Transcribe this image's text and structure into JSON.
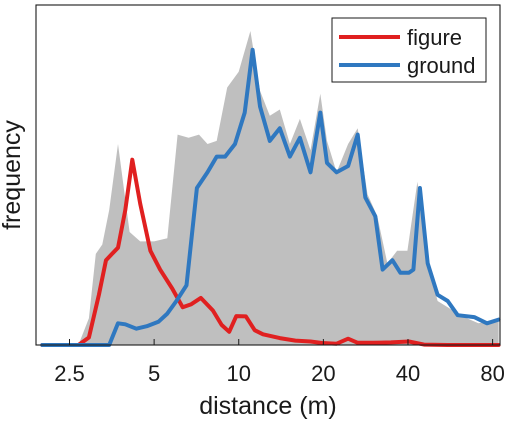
{
  "chart_data": {
    "type": "area",
    "xlabel": "distance (m)",
    "ylabel": "frequency",
    "x_scale": "log",
    "xlim": [
      1.9,
      85
    ],
    "ylim": [
      0,
      1
    ],
    "x_ticks": [
      2.5,
      5,
      10,
      20,
      40,
      80
    ],
    "x_tick_labels": [
      "2.5",
      "5",
      "10",
      "20",
      "40",
      "80"
    ],
    "y_ticks": [],
    "legend": {
      "position": "top-right"
    },
    "series": [
      {
        "name": "",
        "kind": "area",
        "color": "#bfbfbf",
        "points": [
          [
            2.0,
            0.0
          ],
          [
            2.69,
            0.0
          ],
          [
            2.93,
            0.085
          ],
          [
            3.1,
            0.29
          ],
          [
            3.27,
            0.32
          ],
          [
            3.46,
            0.43
          ],
          [
            3.72,
            0.64
          ],
          [
            4.09,
            0.36
          ],
          [
            4.46,
            0.33
          ],
          [
            5.0,
            0.33
          ],
          [
            5.57,
            0.34
          ],
          [
            6.06,
            0.67
          ],
          [
            6.63,
            0.66
          ],
          [
            7.22,
            0.67
          ],
          [
            7.74,
            0.64
          ],
          [
            8.35,
            0.65
          ],
          [
            9.1,
            0.82
          ],
          [
            10.0,
            0.87
          ],
          [
            11.0,
            1.0
          ],
          [
            11.9,
            0.81
          ],
          [
            12.9,
            0.73
          ],
          [
            14.0,
            0.75
          ],
          [
            15.2,
            0.64
          ],
          [
            16.5,
            0.72
          ],
          [
            18.0,
            0.62
          ],
          [
            19.5,
            0.8
          ],
          [
            20.6,
            0.65
          ],
          [
            22.3,
            0.55
          ],
          [
            24.5,
            0.64
          ],
          [
            26.5,
            0.69
          ],
          [
            28.7,
            0.48
          ],
          [
            31.1,
            0.41
          ],
          [
            33.8,
            0.26
          ],
          [
            36.6,
            0.3
          ],
          [
            39.8,
            0.3
          ],
          [
            43.2,
            0.52
          ],
          [
            47.0,
            0.26
          ],
          [
            51.0,
            0.14
          ],
          [
            55.4,
            0.12
          ],
          [
            62.2,
            0.092
          ],
          [
            71.2,
            0.069
          ],
          [
            84.0,
            0.081
          ]
        ]
      },
      {
        "name": "figure",
        "kind": "line",
        "color": "#e02020",
        "points": [
          [
            2.0,
            0.0
          ],
          [
            2.69,
            0.0
          ],
          [
            2.93,
            0.024
          ],
          [
            3.18,
            0.16
          ],
          [
            3.37,
            0.27
          ],
          [
            3.54,
            0.29
          ],
          [
            3.72,
            0.31
          ],
          [
            3.95,
            0.43
          ],
          [
            4.18,
            0.59
          ],
          [
            4.46,
            0.45
          ],
          [
            4.85,
            0.3
          ],
          [
            5.25,
            0.24
          ],
          [
            5.8,
            0.18
          ],
          [
            6.32,
            0.12
          ],
          [
            6.78,
            0.13
          ],
          [
            7.33,
            0.15
          ],
          [
            8.09,
            0.11
          ],
          [
            8.69,
            0.064
          ],
          [
            9.25,
            0.042
          ],
          [
            9.8,
            0.092
          ],
          [
            10.6,
            0.091
          ],
          [
            11.4,
            0.047
          ],
          [
            12.2,
            0.034
          ],
          [
            14.0,
            0.022
          ],
          [
            15.9,
            0.014
          ],
          [
            18.0,
            0.011
          ],
          [
            19.8,
            0.0063
          ],
          [
            22.3,
            0.0042
          ],
          [
            24.5,
            0.02
          ],
          [
            26.5,
            0.007
          ],
          [
            30.0,
            0.007
          ],
          [
            34.8,
            0.0084
          ],
          [
            40.3,
            0.011
          ],
          [
            45.6,
            0.0014
          ],
          [
            55.4,
            0.0
          ],
          [
            84.0,
            0.0
          ]
        ]
      },
      {
        "name": "ground",
        "kind": "line",
        "color": "#2f78c0",
        "points": [
          [
            2.0,
            0.0
          ],
          [
            2.69,
            0.0
          ],
          [
            3.1,
            0.0
          ],
          [
            3.46,
            0.0
          ],
          [
            3.72,
            0.069
          ],
          [
            3.95,
            0.066
          ],
          [
            4.32,
            0.052
          ],
          [
            4.71,
            0.06
          ],
          [
            5.18,
            0.074
          ],
          [
            5.57,
            0.1
          ],
          [
            6.0,
            0.14
          ],
          [
            6.52,
            0.19
          ],
          [
            7.1,
            0.5
          ],
          [
            7.74,
            0.55
          ],
          [
            8.35,
            0.6
          ],
          [
            8.94,
            0.6
          ],
          [
            9.7,
            0.64
          ],
          [
            10.5,
            0.74
          ],
          [
            11.2,
            0.94
          ],
          [
            11.9,
            0.76
          ],
          [
            12.9,
            0.65
          ],
          [
            14.0,
            0.69
          ],
          [
            15.2,
            0.6
          ],
          [
            16.5,
            0.66
          ],
          [
            18.0,
            0.55
          ],
          [
            19.5,
            0.74
          ],
          [
            20.6,
            0.58
          ],
          [
            22.3,
            0.55
          ],
          [
            24.5,
            0.57
          ],
          [
            26.5,
            0.67
          ],
          [
            28.2,
            0.47
          ],
          [
            30.6,
            0.41
          ],
          [
            32.5,
            0.24
          ],
          [
            35.2,
            0.27
          ],
          [
            37.6,
            0.23
          ],
          [
            40.3,
            0.23
          ],
          [
            41.8,
            0.24
          ],
          [
            44.1,
            0.5
          ],
          [
            47.0,
            0.26
          ],
          [
            51.0,
            0.16
          ],
          [
            55.4,
            0.14
          ],
          [
            60.1,
            0.095
          ],
          [
            68.8,
            0.089
          ],
          [
            76.4,
            0.069
          ],
          [
            84.0,
            0.081
          ]
        ]
      }
    ]
  }
}
